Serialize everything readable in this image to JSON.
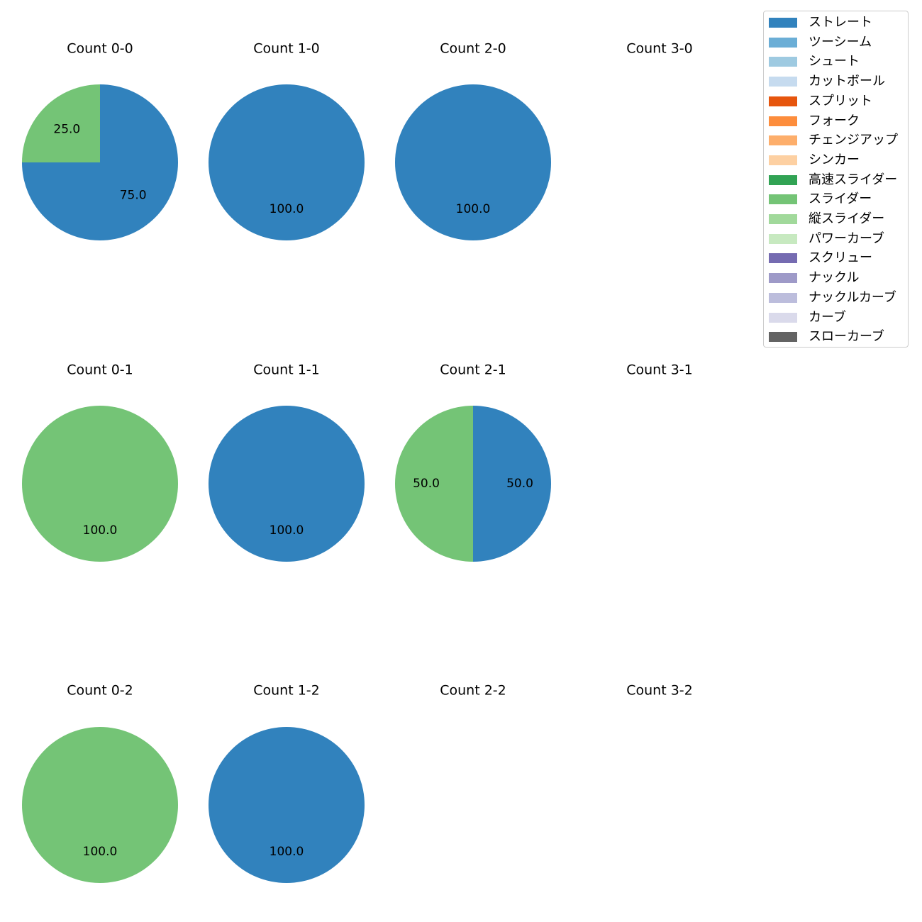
{
  "chart_data": {
    "type": "pie",
    "legend": {
      "placement": "top-right",
      "entries": [
        {
          "name": "ストレート",
          "color": "#3182bd"
        },
        {
          "name": "ツーシーム",
          "color": "#6baed6"
        },
        {
          "name": "シュート",
          "color": "#9ecae1"
        },
        {
          "name": "カットボール",
          "color": "#c6dbef"
        },
        {
          "name": "スプリット",
          "color": "#e6550d"
        },
        {
          "name": "フォーク",
          "color": "#fd8d3c"
        },
        {
          "name": "チェンジアップ",
          "color": "#fdae6b"
        },
        {
          "name": "シンカー",
          "color": "#fdd0a2"
        },
        {
          "name": "高速スライダー",
          "color": "#31a354"
        },
        {
          "name": "スライダー",
          "color": "#74c476"
        },
        {
          "name": "縦スライダー",
          "color": "#a1d99b"
        },
        {
          "name": "パワーカーブ",
          "color": "#c7e9c0"
        },
        {
          "name": "スクリュー",
          "color": "#756bb1"
        },
        {
          "name": "ナックル",
          "color": "#9e9ac8"
        },
        {
          "name": "ナックルカーブ",
          "color": "#bcbddc"
        },
        {
          "name": "カーブ",
          "color": "#dadaeb"
        },
        {
          "name": "スローカーブ",
          "color": "#636363"
        }
      ]
    },
    "panels": [
      {
        "title": "Count 0-0",
        "slices": [
          {
            "pitch": "ストレート",
            "value": 75.0,
            "label": "75.0"
          },
          {
            "pitch": "スライダー",
            "value": 25.0,
            "label": "25.0"
          }
        ]
      },
      {
        "title": "Count 1-0",
        "slices": [
          {
            "pitch": "ストレート",
            "value": 100.0,
            "label": "100.0"
          }
        ]
      },
      {
        "title": "Count 2-0",
        "slices": [
          {
            "pitch": "ストレート",
            "value": 100.0,
            "label": "100.0"
          }
        ]
      },
      {
        "title": "Count 3-0",
        "slices": []
      },
      {
        "title": "Count 0-1",
        "slices": [
          {
            "pitch": "スライダー",
            "value": 100.0,
            "label": "100.0"
          }
        ]
      },
      {
        "title": "Count 1-1",
        "slices": [
          {
            "pitch": "ストレート",
            "value": 100.0,
            "label": "100.0"
          }
        ]
      },
      {
        "title": "Count 2-1",
        "slices": [
          {
            "pitch": "ストレート",
            "value": 50.0,
            "label": "50.0"
          },
          {
            "pitch": "スライダー",
            "value": 50.0,
            "label": "50.0"
          }
        ]
      },
      {
        "title": "Count 3-1",
        "slices": []
      },
      {
        "title": "Count 0-2",
        "slices": [
          {
            "pitch": "スライダー",
            "value": 100.0,
            "label": "100.0"
          }
        ]
      },
      {
        "title": "Count 1-2",
        "slices": [
          {
            "pitch": "ストレート",
            "value": 100.0,
            "label": "100.0"
          }
        ]
      },
      {
        "title": "Count 2-2",
        "slices": []
      },
      {
        "title": "Count 3-2",
        "slices": []
      }
    ]
  }
}
